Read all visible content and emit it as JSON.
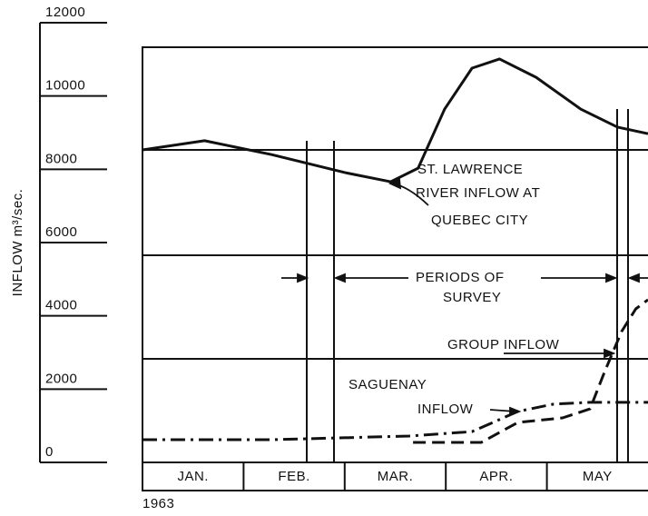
{
  "chart_data": {
    "type": "line",
    "y_label": "INFLOW m³/sec.",
    "year": "1963",
    "categories": [
      "JAN.",
      "FEB.",
      "MAR.",
      "APR.",
      "MAY"
    ],
    "xlim": [
      0,
      4.97
    ],
    "ylim": [
      0,
      12000
    ],
    "yticks": [
      0,
      2000,
      4000,
      6000,
      8000,
      10000,
      12000
    ],
    "series": [
      {
        "name": "ST. LAWRENCE RIVER INFLOW AT QUEBEC CITY",
        "color": "#111",
        "dash": "solid",
        "x": [
          0,
          0.61,
          1.27,
          1.99,
          2.44,
          2.71,
          2.97,
          3.24,
          3.51,
          3.87,
          4.31,
          4.67,
          4.97
        ],
        "values": [
          8530,
          8780,
          8400,
          7910,
          7660,
          8030,
          9640,
          10760,
          11010,
          10510,
          9640,
          9150,
          8970
        ]
      },
      {
        "name": "SAGUENAY INFLOW",
        "color": "#111",
        "dash": "dashdot",
        "x": [
          0,
          1.28,
          2.62,
          3.24,
          3.69,
          4.04,
          4.4,
          4.49,
          4.97
        ],
        "values": [
          620,
          620,
          720,
          840,
          1390,
          1590,
          1640,
          1640,
          1640
        ]
      },
      {
        "name": "GROUP INFLOW",
        "color": "#111",
        "dash": "dashed",
        "x": [
          2.66,
          3.33,
          3.69,
          4.13,
          4.4,
          4.54,
          4.71,
          4.85,
          4.97
        ],
        "values": [
          545,
          545,
          1090,
          1215,
          1460,
          2450,
          3570,
          4190,
          4440
        ]
      }
    ],
    "annotations": [
      "ST. LAWRENCE",
      "RIVER INFLOW AT",
      "QUEBEC CITY",
      "PERIODS OF",
      "SURVEY",
      "GROUP INFLOW",
      "SAGUENAY",
      "INFLOW"
    ]
  }
}
